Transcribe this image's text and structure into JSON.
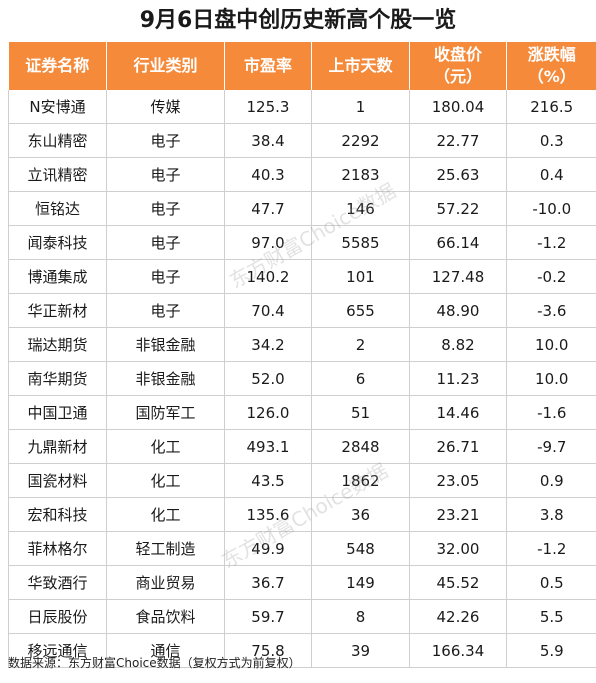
{
  "title": "9月6日盘中创历史新高个股一览",
  "headers": [
    {
      "line1": "证券名称",
      "line2": ""
    },
    {
      "line1": "行业类别",
      "line2": ""
    },
    {
      "line1": "市盈率",
      "line2": ""
    },
    {
      "line1": "上市天数",
      "line2": ""
    },
    {
      "line1": "收盘价",
      "line2": "（元）"
    },
    {
      "line1": "涨跌幅",
      "line2": "（%）"
    }
  ],
  "rows": [
    [
      "N安博通",
      "传媒",
      "125.3",
      "1",
      "180.04",
      "216.5"
    ],
    [
      "东山精密",
      "电子",
      "38.4",
      "2292",
      "22.77",
      "0.3"
    ],
    [
      "立讯精密",
      "电子",
      "40.3",
      "2183",
      "25.63",
      "0.4"
    ],
    [
      "恒铭达",
      "电子",
      "47.7",
      "146",
      "57.22",
      "-10.0"
    ],
    [
      "闻泰科技",
      "电子",
      "97.0",
      "5585",
      "66.14",
      "-1.2"
    ],
    [
      "博通集成",
      "电子",
      "140.2",
      "101",
      "127.48",
      "-0.2"
    ],
    [
      "华正新材",
      "电子",
      "70.4",
      "655",
      "48.90",
      "-3.6"
    ],
    [
      "瑞达期货",
      "非银金融",
      "34.2",
      "2",
      "8.82",
      "10.0"
    ],
    [
      "南华期货",
      "非银金融",
      "52.0",
      "6",
      "11.23",
      "10.0"
    ],
    [
      "中国卫通",
      "国防军工",
      "126.0",
      "51",
      "14.46",
      "-1.6"
    ],
    [
      "九鼎新材",
      "化工",
      "493.1",
      "2848",
      "26.71",
      "-9.7"
    ],
    [
      "国瓷材料",
      "化工",
      "43.5",
      "1862",
      "23.05",
      "0.9"
    ],
    [
      "宏和科技",
      "化工",
      "135.6",
      "36",
      "23.21",
      "3.8"
    ],
    [
      "菲林格尔",
      "轻工制造",
      "49.9",
      "548",
      "32.00",
      "-1.2"
    ],
    [
      "华致酒行",
      "商业贸易",
      "36.7",
      "149",
      "45.52",
      "0.5"
    ],
    [
      "日辰股份",
      "食品饮料",
      "59.7",
      "8",
      "42.26",
      "5.5"
    ],
    [
      "移远通信",
      "通信",
      "75.8",
      "39",
      "166.34",
      "5.9"
    ]
  ],
  "watermark": "东方财富Choice数据",
  "footer": "数据来源：东方财富Choice数据（复权方式为前复权）"
}
